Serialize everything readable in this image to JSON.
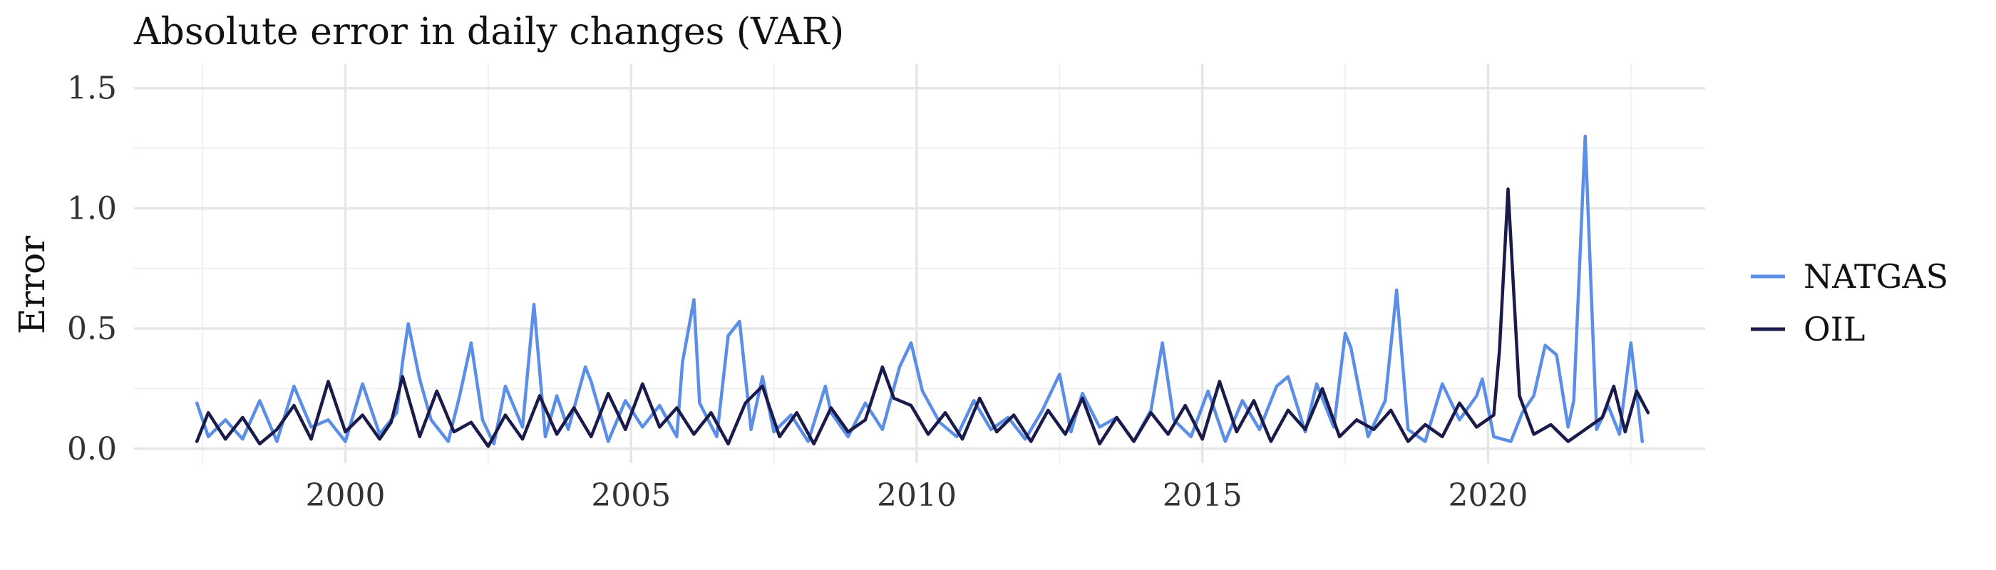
{
  "chart_data": {
    "type": "line",
    "title": "Absolute error in daily changes (VAR)",
    "xlabel": "",
    "ylabel": "Error",
    "xlim": [
      1996.3,
      2023.8
    ],
    "ylim": [
      -0.06,
      1.6
    ],
    "x_ticks": [
      2000,
      2005,
      2010,
      2015,
      2020
    ],
    "x_tick_labels": [
      "2000",
      "2005",
      "2010",
      "2015",
      "2020"
    ],
    "y_ticks": [
      0.0,
      0.5,
      1.0,
      1.5
    ],
    "y_tick_labels": [
      "0.0",
      "0.5",
      "1.0",
      "1.5"
    ],
    "grid": true,
    "legend_position": "right",
    "series": [
      {
        "name": "NATGAS",
        "color": "#5b8ee6",
        "points": [
          [
            1997.4,
            0.19
          ],
          [
            1997.6,
            0.05
          ],
          [
            1997.9,
            0.12
          ],
          [
            1998.2,
            0.04
          ],
          [
            1998.5,
            0.2
          ],
          [
            1998.8,
            0.03
          ],
          [
            1999.1,
            0.26
          ],
          [
            1999.4,
            0.09
          ],
          [
            1999.7,
            0.12
          ],
          [
            2000.0,
            0.03
          ],
          [
            2000.3,
            0.27
          ],
          [
            2000.6,
            0.06
          ],
          [
            2000.9,
            0.15
          ],
          [
            2001.0,
            0.36
          ],
          [
            2001.1,
            0.52
          ],
          [
            2001.3,
            0.29
          ],
          [
            2001.5,
            0.12
          ],
          [
            2001.8,
            0.03
          ],
          [
            2002.0,
            0.22
          ],
          [
            2002.2,
            0.44
          ],
          [
            2002.4,
            0.12
          ],
          [
            2002.6,
            0.02
          ],
          [
            2002.8,
            0.26
          ],
          [
            2003.1,
            0.09
          ],
          [
            2003.3,
            0.6
          ],
          [
            2003.5,
            0.05
          ],
          [
            2003.7,
            0.22
          ],
          [
            2003.9,
            0.08
          ],
          [
            2004.2,
            0.34
          ],
          [
            2004.3,
            0.28
          ],
          [
            2004.6,
            0.03
          ],
          [
            2004.9,
            0.2
          ],
          [
            2005.2,
            0.09
          ],
          [
            2005.5,
            0.18
          ],
          [
            2005.8,
            0.05
          ],
          [
            2005.9,
            0.36
          ],
          [
            2006.1,
            0.62
          ],
          [
            2006.2,
            0.19
          ],
          [
            2006.5,
            0.05
          ],
          [
            2006.7,
            0.47
          ],
          [
            2006.9,
            0.53
          ],
          [
            2007.1,
            0.08
          ],
          [
            2007.3,
            0.3
          ],
          [
            2007.5,
            0.07
          ],
          [
            2007.8,
            0.14
          ],
          [
            2008.1,
            0.03
          ],
          [
            2008.4,
            0.26
          ],
          [
            2008.5,
            0.15
          ],
          [
            2008.8,
            0.05
          ],
          [
            2009.1,
            0.19
          ],
          [
            2009.4,
            0.08
          ],
          [
            2009.7,
            0.34
          ],
          [
            2009.9,
            0.44
          ],
          [
            2010.1,
            0.24
          ],
          [
            2010.4,
            0.11
          ],
          [
            2010.7,
            0.05
          ],
          [
            2011.0,
            0.2
          ],
          [
            2011.3,
            0.08
          ],
          [
            2011.6,
            0.13
          ],
          [
            2011.9,
            0.04
          ],
          [
            2012.2,
            0.16
          ],
          [
            2012.5,
            0.31
          ],
          [
            2012.7,
            0.07
          ],
          [
            2012.9,
            0.23
          ],
          [
            2013.2,
            0.09
          ],
          [
            2013.5,
            0.13
          ],
          [
            2013.8,
            0.03
          ],
          [
            2014.1,
            0.16
          ],
          [
            2014.3,
            0.44
          ],
          [
            2014.5,
            0.12
          ],
          [
            2014.8,
            0.05
          ],
          [
            2015.1,
            0.24
          ],
          [
            2015.4,
            0.03
          ],
          [
            2015.7,
            0.2
          ],
          [
            2016.0,
            0.08
          ],
          [
            2016.3,
            0.26
          ],
          [
            2016.5,
            0.3
          ],
          [
            2016.8,
            0.07
          ],
          [
            2017.0,
            0.27
          ],
          [
            2017.3,
            0.09
          ],
          [
            2017.5,
            0.48
          ],
          [
            2017.6,
            0.42
          ],
          [
            2017.9,
            0.05
          ],
          [
            2018.2,
            0.2
          ],
          [
            2018.4,
            0.66
          ],
          [
            2018.6,
            0.08
          ],
          [
            2018.9,
            0.03
          ],
          [
            2019.2,
            0.27
          ],
          [
            2019.5,
            0.12
          ],
          [
            2019.8,
            0.22
          ],
          [
            2019.9,
            0.29
          ],
          [
            2020.1,
            0.05
          ],
          [
            2020.4,
            0.03
          ],
          [
            2020.6,
            0.15
          ],
          [
            2020.8,
            0.22
          ],
          [
            2021.0,
            0.43
          ],
          [
            2021.2,
            0.39
          ],
          [
            2021.4,
            0.09
          ],
          [
            2021.5,
            0.2
          ],
          [
            2021.7,
            1.3
          ],
          [
            2021.9,
            0.08
          ],
          [
            2022.1,
            0.18
          ],
          [
            2022.3,
            0.06
          ],
          [
            2022.5,
            0.44
          ],
          [
            2022.7,
            0.03
          ]
        ]
      },
      {
        "name": "OIL",
        "color": "#1a1b4b",
        "points": [
          [
            1997.4,
            0.03
          ],
          [
            1997.6,
            0.15
          ],
          [
            1997.9,
            0.04
          ],
          [
            1998.2,
            0.13
          ],
          [
            1998.5,
            0.02
          ],
          [
            1998.8,
            0.08
          ],
          [
            1999.1,
            0.18
          ],
          [
            1999.4,
            0.04
          ],
          [
            1999.7,
            0.28
          ],
          [
            2000.0,
            0.07
          ],
          [
            2000.3,
            0.14
          ],
          [
            2000.6,
            0.04
          ],
          [
            2000.8,
            0.11
          ],
          [
            2001.0,
            0.3
          ],
          [
            2001.3,
            0.05
          ],
          [
            2001.6,
            0.24
          ],
          [
            2001.9,
            0.07
          ],
          [
            2002.2,
            0.11
          ],
          [
            2002.5,
            0.01
          ],
          [
            2002.8,
            0.14
          ],
          [
            2003.1,
            0.04
          ],
          [
            2003.4,
            0.22
          ],
          [
            2003.7,
            0.06
          ],
          [
            2004.0,
            0.17
          ],
          [
            2004.3,
            0.05
          ],
          [
            2004.6,
            0.23
          ],
          [
            2004.9,
            0.08
          ],
          [
            2005.2,
            0.27
          ],
          [
            2005.5,
            0.09
          ],
          [
            2005.8,
            0.17
          ],
          [
            2006.1,
            0.06
          ],
          [
            2006.4,
            0.15
          ],
          [
            2006.7,
            0.02
          ],
          [
            2007.0,
            0.19
          ],
          [
            2007.3,
            0.26
          ],
          [
            2007.6,
            0.05
          ],
          [
            2007.9,
            0.15
          ],
          [
            2008.2,
            0.02
          ],
          [
            2008.5,
            0.17
          ],
          [
            2008.8,
            0.07
          ],
          [
            2009.1,
            0.12
          ],
          [
            2009.4,
            0.34
          ],
          [
            2009.6,
            0.21
          ],
          [
            2009.9,
            0.18
          ],
          [
            2010.2,
            0.06
          ],
          [
            2010.5,
            0.15
          ],
          [
            2010.8,
            0.04
          ],
          [
            2011.1,
            0.21
          ],
          [
            2011.4,
            0.07
          ],
          [
            2011.7,
            0.14
          ],
          [
            2012.0,
            0.03
          ],
          [
            2012.3,
            0.16
          ],
          [
            2012.6,
            0.06
          ],
          [
            2012.9,
            0.21
          ],
          [
            2013.2,
            0.02
          ],
          [
            2013.5,
            0.13
          ],
          [
            2013.8,
            0.03
          ],
          [
            2014.1,
            0.15
          ],
          [
            2014.4,
            0.06
          ],
          [
            2014.7,
            0.18
          ],
          [
            2015.0,
            0.04
          ],
          [
            2015.3,
            0.28
          ],
          [
            2015.6,
            0.07
          ],
          [
            2015.9,
            0.2
          ],
          [
            2016.2,
            0.03
          ],
          [
            2016.5,
            0.16
          ],
          [
            2016.8,
            0.08
          ],
          [
            2017.1,
            0.25
          ],
          [
            2017.4,
            0.05
          ],
          [
            2017.7,
            0.12
          ],
          [
            2018.0,
            0.08
          ],
          [
            2018.3,
            0.16
          ],
          [
            2018.6,
            0.03
          ],
          [
            2018.9,
            0.1
          ],
          [
            2019.2,
            0.05
          ],
          [
            2019.5,
            0.19
          ],
          [
            2019.8,
            0.09
          ],
          [
            2020.1,
            0.14
          ],
          [
            2020.2,
            0.41
          ],
          [
            2020.35,
            1.08
          ],
          [
            2020.55,
            0.22
          ],
          [
            2020.8,
            0.06
          ],
          [
            2021.1,
            0.1
          ],
          [
            2021.4,
            0.03
          ],
          [
            2021.7,
            0.08
          ],
          [
            2022.0,
            0.13
          ],
          [
            2022.2,
            0.26
          ],
          [
            2022.4,
            0.07
          ],
          [
            2022.6,
            0.24
          ],
          [
            2022.8,
            0.15
          ]
        ]
      }
    ]
  }
}
